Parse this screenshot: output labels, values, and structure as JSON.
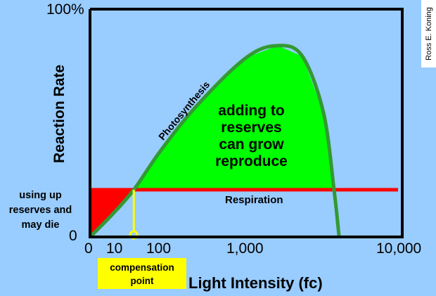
{
  "chart_data": {
    "type": "line",
    "title": "",
    "xlabel": "Light Intensity (fc)",
    "ylabel": "Reaction Rate",
    "x_ticks": [
      0,
      10,
      100,
      1000,
      10000
    ],
    "x_tick_labels": [
      "0",
      "10",
      "100",
      "1,000",
      "10,000"
    ],
    "y_tick_labels": [
      "0",
      "100%"
    ],
    "ylim": [
      0,
      100
    ],
    "series": [
      {
        "name": "Photosynthesis",
        "color": "#339933",
        "x": [
          0,
          8.6,
          46,
          100,
          484,
          1000,
          2824,
          4243,
          5459,
          6068,
          6351
        ],
        "y": [
          0,
          9.9,
          20.7,
          37.7,
          57.7,
          78.7,
          84,
          79.3,
          54.6,
          20.7,
          0.6
        ]
      },
      {
        "name": "Respiration",
        "color": "#ff0000",
        "constant": 20.7
      }
    ],
    "compensation_point_x": 46,
    "annotations": {
      "surplus": [
        "adding to",
        "reserves",
        "can grow",
        "reproduce"
      ],
      "deficit": [
        "using up",
        "reserves and",
        "may die"
      ],
      "compensation": [
        "compensation",
        "point"
      ]
    },
    "colors": {
      "background": "#99ccff",
      "surplus_fill": "#00ff00",
      "deficit_fill": "#ff0000",
      "marker": "#ffff00"
    }
  },
  "credit": "Ross E. Koning"
}
